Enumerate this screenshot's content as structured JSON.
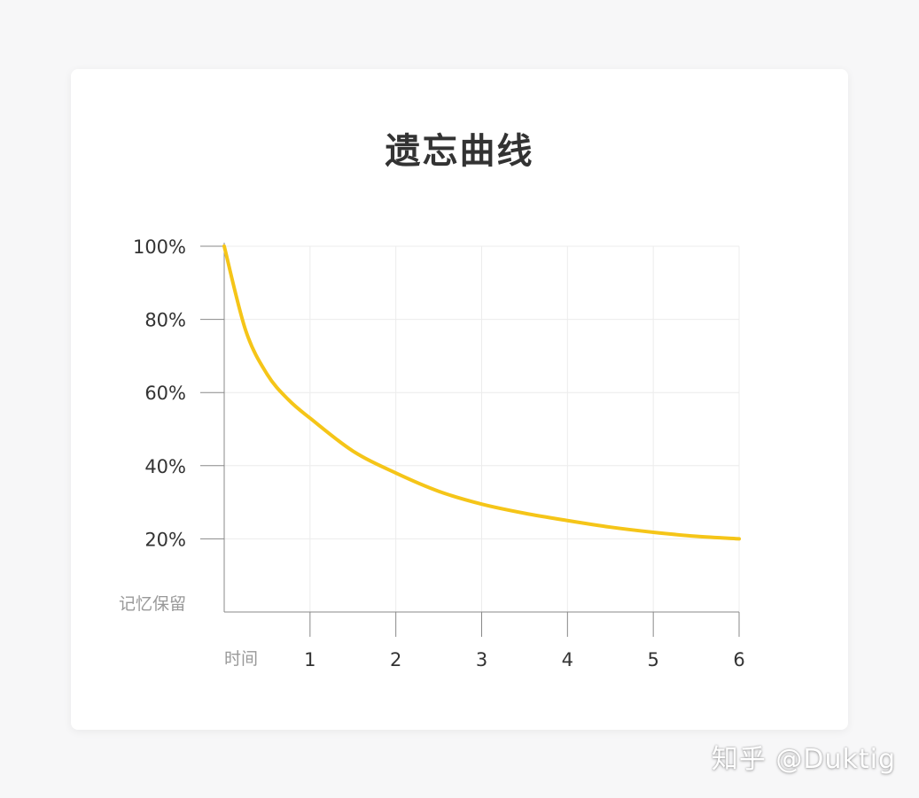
{
  "chart_data": {
    "type": "line",
    "title": "遗忘曲线",
    "ylabel": "记忆保留",
    "xlabel": "时间",
    "x_ticks": [
      1,
      2,
      3,
      4,
      5,
      6
    ],
    "y_ticks": [
      "20%",
      "40%",
      "60%",
      "80%",
      "100%"
    ],
    "y_tick_values": [
      20,
      40,
      60,
      80,
      100
    ],
    "xlim": [
      0,
      6
    ],
    "ylim": [
      0,
      100
    ],
    "grid": true,
    "series": [
      {
        "color": "#f5c518",
        "x": [
          0,
          0.25,
          0.5,
          0.75,
          1,
          1.5,
          2,
          2.5,
          3,
          3.5,
          4,
          4.5,
          5,
          5.5,
          6
        ],
        "y": [
          100,
          77,
          65,
          58,
          53,
          44,
          38,
          33,
          29.5,
          27,
          25,
          23.2,
          21.8,
          20.7,
          20
        ]
      }
    ]
  },
  "watermark": "知乎 @Duktig"
}
